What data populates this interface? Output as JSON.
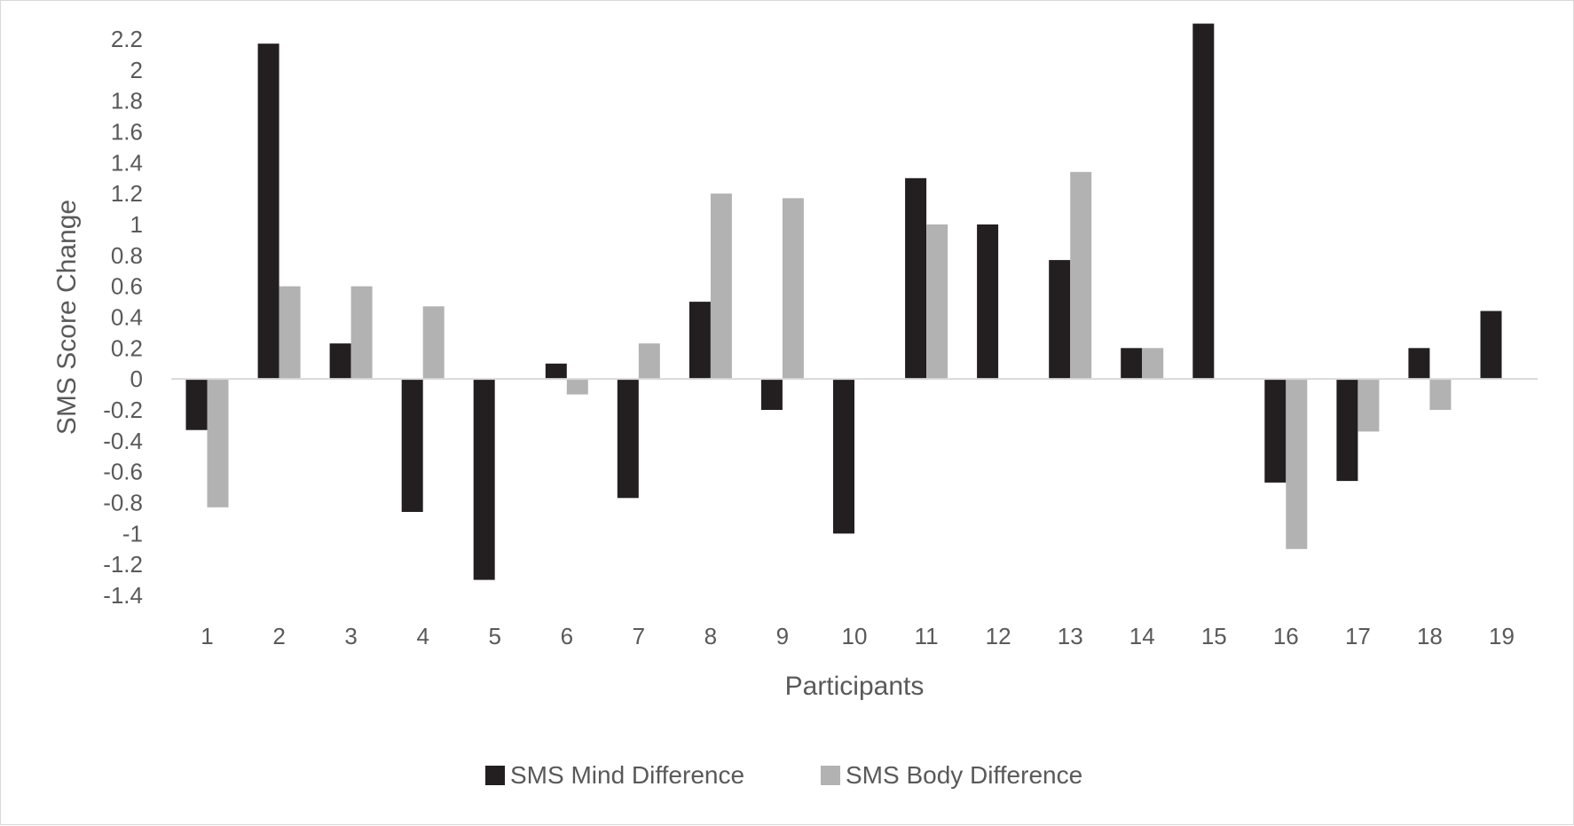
{
  "chart_data": {
    "type": "bar",
    "title": "",
    "xlabel": "Participants",
    "ylabel": "SMS Score Change",
    "categories": [
      "1",
      "2",
      "3",
      "4",
      "5",
      "6",
      "7",
      "8",
      "9",
      "10",
      "11",
      "12",
      "13",
      "14",
      "15",
      "16",
      "17",
      "18",
      "19"
    ],
    "series": [
      {
        "name": "SMS Mind Difference",
        "color": "#231f20",
        "values": [
          -0.33,
          2.17,
          0.23,
          -0.86,
          -1.3,
          0.1,
          -0.77,
          0.5,
          -0.2,
          -1.0,
          1.3,
          1.0,
          0.77,
          0.2,
          2.3,
          -0.67,
          -0.66,
          0.2,
          0.44
        ]
      },
      {
        "name": "SMS Body Difference",
        "color": "#b2b2b2",
        "values": [
          -0.83,
          0.6,
          0.6,
          0.47,
          0.0,
          -0.1,
          0.23,
          1.2,
          1.17,
          0.0,
          1.0,
          0.0,
          1.34,
          0.2,
          0.0,
          -1.1,
          -0.34,
          -0.2,
          0.0
        ]
      }
    ],
    "yticks": [
      "-1.4",
      "-1.2",
      "-1",
      "-0.8",
      "-0.6",
      "-0.4",
      "-0.2",
      "0",
      "0.2",
      "0.4",
      "0.6",
      "0.8",
      "1",
      "1.2",
      "1.4",
      "1.6",
      "1.8",
      "2",
      "2.2"
    ],
    "ylim": [
      -1.4,
      2.2
    ],
    "grid": false,
    "legend_position": "bottom"
  }
}
